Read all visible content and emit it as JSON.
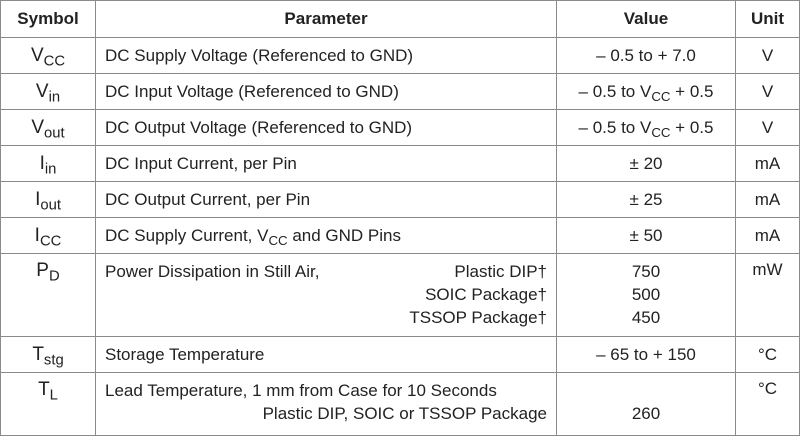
{
  "table": {
    "header": [
      "Symbol",
      "Parameter",
      "Value",
      "Unit"
    ],
    "rows": [
      {
        "symbol": [
          {
            "t": "V"
          },
          {
            "sub": "CC"
          }
        ],
        "parameter": [
          {
            "t": "DC Supply Voltage (Referenced to GND)"
          }
        ],
        "value": [
          {
            "t": "– 0.5 to + 7.0"
          }
        ],
        "unit": "V"
      },
      {
        "symbol": [
          {
            "t": "V"
          },
          {
            "sub": "in"
          }
        ],
        "parameter": [
          {
            "t": "DC Input Voltage (Referenced to GND)"
          }
        ],
        "value": [
          {
            "t": "– 0.5 to V"
          },
          {
            "sub": "CC"
          },
          {
            "t": " + 0.5"
          }
        ],
        "unit": "V"
      },
      {
        "symbol": [
          {
            "t": "V"
          },
          {
            "sub": "out"
          }
        ],
        "parameter": [
          {
            "t": "DC Output Voltage (Referenced to GND)"
          }
        ],
        "value": [
          {
            "t": "– 0.5 to V"
          },
          {
            "sub": "CC"
          },
          {
            "t": " + 0.5"
          }
        ],
        "unit": "V"
      },
      {
        "symbol": [
          {
            "t": "I"
          },
          {
            "sub": "in"
          }
        ],
        "parameter": [
          {
            "t": "DC Input Current, per Pin"
          }
        ],
        "value": [
          {
            "t": "± 20"
          }
        ],
        "unit": "mA"
      },
      {
        "symbol": [
          {
            "t": "I"
          },
          {
            "sub": "out"
          }
        ],
        "parameter": [
          {
            "t": "DC Output Current, per Pin"
          }
        ],
        "value": [
          {
            "t": "± 25"
          }
        ],
        "unit": "mA"
      },
      {
        "symbol": [
          {
            "t": "I"
          },
          {
            "sub": "CC"
          }
        ],
        "parameter": [
          {
            "t": "DC Supply Current, V"
          },
          {
            "sub": "CC"
          },
          {
            "t": " and GND Pins"
          }
        ],
        "value": [
          {
            "t": "± 50"
          }
        ],
        "unit": "mA"
      },
      {
        "symbol": [
          {
            "t": "P"
          },
          {
            "sub": "D"
          }
        ],
        "parameter": {
          "label": "Power Dissipation in Still Air,",
          "packages": [
            "Plastic DIP†",
            "SOIC Package†",
            "TSSOP Package†"
          ]
        },
        "values": [
          "750",
          "500",
          "450"
        ],
        "unit": "mW"
      },
      {
        "symbol": [
          {
            "t": "T"
          },
          {
            "sub": "stg"
          }
        ],
        "parameter": [
          {
            "t": "Storage Temperature"
          }
        ],
        "value": [
          {
            "t": "– 65 to + 150"
          }
        ],
        "unit": "°C"
      },
      {
        "symbol": [
          {
            "t": "T"
          },
          {
            "sub": "L"
          }
        ],
        "parameter": {
          "label": "Lead Temperature, 1 mm from Case for 10 Seconds",
          "condition": "Plastic DIP, SOIC or TSSOP Package"
        },
        "value": "260",
        "unit": "°C"
      }
    ]
  }
}
